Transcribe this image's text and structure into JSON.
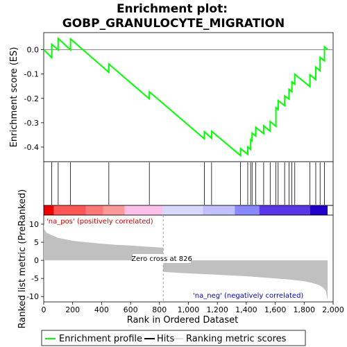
{
  "chart_data": {
    "type": "line",
    "title_line1": "Enrichment plot:",
    "title_line2": "GOBP_GRANULOCYTE_MIGRATION",
    "es_panel": {
      "ylabel": "Enrichment score (ES)",
      "ylim": [
        -0.46,
        0.07
      ],
      "yticks": [
        0.0,
        -0.1,
        -0.2,
        -0.3,
        -0.4
      ],
      "ytick_labels": [
        "0.0",
        "-0.1",
        "-0.2",
        "-0.3",
        "-0.4"
      ],
      "line_color": "#00ff00",
      "profile": [
        [
          0,
          0.0
        ],
        [
          55,
          -0.033
        ],
        [
          55,
          0.022
        ],
        [
          100,
          -0.001
        ],
        [
          100,
          0.046
        ],
        [
          185,
          -0.001
        ],
        [
          185,
          0.044
        ],
        [
          450,
          -0.093
        ],
        [
          450,
          -0.059
        ],
        [
          730,
          -0.202
        ],
        [
          730,
          -0.173
        ],
        [
          1110,
          -0.366
        ],
        [
          1110,
          -0.337
        ],
        [
          1160,
          -0.364
        ],
        [
          1160,
          -0.335
        ],
        [
          1360,
          -0.435
        ],
        [
          1360,
          -0.406
        ],
        [
          1410,
          -0.43
        ],
        [
          1410,
          -0.4
        ],
        [
          1430,
          -0.41
        ],
        [
          1430,
          -0.37
        ],
        [
          1440,
          -0.375
        ],
        [
          1440,
          -0.343
        ],
        [
          1465,
          -0.355
        ],
        [
          1465,
          -0.319
        ],
        [
          1520,
          -0.345
        ],
        [
          1520,
          -0.312
        ],
        [
          1565,
          -0.335
        ],
        [
          1565,
          -0.295
        ],
        [
          1605,
          -0.315
        ],
        [
          1605,
          -0.238
        ],
        [
          1620,
          -0.246
        ],
        [
          1620,
          -0.209
        ],
        [
          1665,
          -0.23
        ],
        [
          1665,
          -0.19
        ],
        [
          1695,
          -0.203
        ],
        [
          1695,
          -0.163
        ],
        [
          1715,
          -0.173
        ],
        [
          1715,
          -0.132
        ],
        [
          1735,
          -0.142
        ],
        [
          1735,
          -0.101
        ],
        [
          1840,
          -0.152
        ],
        [
          1840,
          -0.103
        ],
        [
          1880,
          -0.123
        ],
        [
          1880,
          -0.072
        ],
        [
          1910,
          -0.087
        ],
        [
          1910,
          -0.032
        ],
        [
          1940,
          -0.046
        ],
        [
          1940,
          0.012
        ],
        [
          1962,
          0.0
        ]
      ]
    },
    "hits": [
      55,
      100,
      185,
      450,
      730,
      1110,
      1160,
      1360,
      1410,
      1430,
      1440,
      1465,
      1520,
      1565,
      1605,
      1620,
      1665,
      1695,
      1715,
      1735,
      1840,
      1880,
      1910,
      1940
    ],
    "metric_panel": {
      "ylabel": "Ranked list metric (PreRanked)",
      "ylim": [
        -11.5,
        12.5
      ],
      "yticks": [
        10,
        5,
        0,
        -5,
        -10
      ],
      "ytick_labels": [
        "10",
        "5",
        "0",
        "-5",
        "-10"
      ],
      "metric_curve": [
        [
          0,
          10.2
        ],
        [
          5,
          8.5
        ],
        [
          20,
          7.6
        ],
        [
          60,
          6.9
        ],
        [
          100,
          6.2
        ],
        [
          200,
          5.4
        ],
        [
          300,
          5.0
        ],
        [
          400,
          4.6
        ],
        [
          500,
          4.3
        ],
        [
          600,
          4.1
        ],
        [
          700,
          3.8
        ],
        [
          826,
          3.5
        ],
        [
          826,
          -3.2
        ],
        [
          900,
          -3.4
        ],
        [
          1000,
          -3.6
        ],
        [
          1100,
          -3.8
        ],
        [
          1200,
          -4.0
        ],
        [
          1300,
          -4.2
        ],
        [
          1400,
          -4.4
        ],
        [
          1500,
          -4.7
        ],
        [
          1600,
          -5.0
        ],
        [
          1700,
          -5.3
        ],
        [
          1800,
          -5.8
        ],
        [
          1850,
          -6.2
        ],
        [
          1900,
          -6.8
        ],
        [
          1930,
          -7.5
        ],
        [
          1950,
          -8.5
        ],
        [
          1962,
          -11.0
        ]
      ],
      "fill_color": "#c0c0c0",
      "pos_label": "'na_pos' (positively correlated)",
      "neg_label": "'na_neg' (negatively correlated)",
      "zero_cross_label": "Zero cross at 826",
      "zero_cross": 826
    },
    "xlabel": "Rank in Ordered Dataset",
    "xlim": [
      0,
      2000
    ],
    "xticks": [
      0,
      200,
      400,
      600,
      800,
      1000,
      1200,
      1400,
      1600,
      1800,
      2000
    ],
    "xtick_labels": [
      "0",
      "200",
      "400",
      "600",
      "800",
      "1,000",
      "1,200",
      "1,400",
      "1,600",
      "1,800",
      "2,000"
    ],
    "n_genes": 1962,
    "color_bar": [
      {
        "from": 0,
        "to": 70,
        "color": "#ee0000"
      },
      {
        "from": 70,
        "to": 290,
        "color": "#ff5555"
      },
      {
        "from": 290,
        "to": 410,
        "color": "#ff7777"
      },
      {
        "from": 410,
        "to": 560,
        "color": "#ff9999"
      },
      {
        "from": 560,
        "to": 820,
        "color": "#ffc0e8"
      },
      {
        "from": 820,
        "to": 1100,
        "color": "#d8d8ff"
      },
      {
        "from": 1100,
        "to": 1320,
        "color": "#c0c0ff"
      },
      {
        "from": 1320,
        "to": 1490,
        "color": "#8888ff"
      },
      {
        "from": 1490,
        "to": 1840,
        "color": "#5a36e6"
      },
      {
        "from": 1840,
        "to": 1962,
        "color": "#2200cc"
      }
    ],
    "legend": [
      {
        "label": "Enrichment profile",
        "color": "#00ff00",
        "style": "profile"
      },
      {
        "label": "Hits",
        "color": "#000000",
        "style": "hits"
      },
      {
        "label": "Ranking metric scores",
        "color": "#c0c0c0",
        "style": "metric"
      }
    ]
  }
}
